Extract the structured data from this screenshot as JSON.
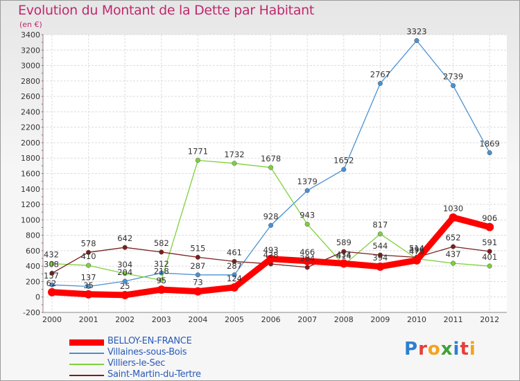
{
  "header": {
    "title": "Evolution du Montant de la Dette par Habitant",
    "subtitle": "(en €)"
  },
  "logo": {
    "text": "Proxiti"
  },
  "chart_data": {
    "type": "line",
    "title": "Evolution du Montant de la Dette par Habitant",
    "subtitle": "(en €)",
    "xlabel": "",
    "ylabel": "",
    "ylim": [
      -200,
      3400
    ],
    "yticks": [
      -200,
      0,
      200,
      400,
      600,
      800,
      1000,
      1200,
      1400,
      1600,
      1800,
      2000,
      2200,
      2400,
      2600,
      2800,
      3000,
      3200,
      3400
    ],
    "x": [
      "2000",
      "2001",
      "2002",
      "2003",
      "2004",
      "2005",
      "2006",
      "2007",
      "2008",
      "2009",
      "2010",
      "2011",
      "2012"
    ],
    "grid": true,
    "legend_position": "bottom-left",
    "series": [
      {
        "name": "BELLOY-EN-FRANCE",
        "color": "#ff0000",
        "values": [
          62,
          35,
          25,
          95,
          73,
          124,
          493,
          466,
          434,
          394,
          475,
          1030,
          906
        ],
        "labels": [
          "62",
          "35",
          "25",
          "95",
          "73",
          "124",
          "493",
          "466",
          "434",
          "394",
          "475",
          "1030",
          "906"
        ]
      },
      {
        "name": "Villaines-sous-Bois",
        "color": "#4a90d0",
        "values": [
          157,
          137,
          204,
          312,
          287,
          287,
          928,
          1379,
          1652,
          2767,
          3323,
          2739,
          1869
        ],
        "labels": [
          "157",
          "137",
          "204",
          "312",
          "287",
          "287",
          "928",
          "1379",
          "1652",
          "2767",
          "3323",
          "2739",
          "1869"
        ]
      },
      {
        "name": "Villiers-le-Sec",
        "color": "#7ed03a",
        "values": [
          432,
          410,
          304,
          218,
          1771,
          1732,
          1678,
          943,
          414,
          817,
          496,
          437,
          401
        ],
        "labels": [
          "432",
          "410",
          "304",
          "218",
          "1771",
          "1732",
          "1678",
          "943",
          "414",
          "817",
          "496",
          "437",
          "401"
        ]
      },
      {
        "name": "Saint-Martin-du-Tertre",
        "color": "#7a1e1e",
        "values": [
          308,
          578,
          642,
          582,
          515,
          461,
          428,
          384,
          589,
          544,
          514,
          652,
          591
        ],
        "labels": [
          "308",
          "578",
          "642",
          "582",
          "515",
          "461",
          "428",
          "384",
          "589",
          "544",
          "514",
          "652",
          "591"
        ]
      }
    ]
  }
}
